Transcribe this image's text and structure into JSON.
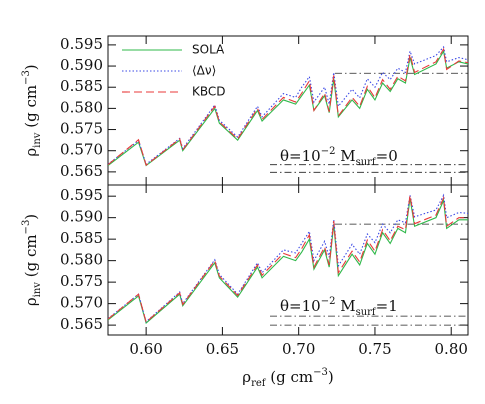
{
  "chart_data": [
    {
      "type": "line",
      "x_label": {
        "main": "ρ",
        "sub": "ref",
        "rest": " (g cm",
        "sup": "−3",
        "end": ")"
      },
      "y_label": {
        "main": "ρ",
        "sub": "inv",
        "rest": " (g cm",
        "sup": "−3",
        "end": ")"
      },
      "annotation": {
        "main": "θ=10",
        "sup": "−2",
        "rest": "   M",
        "sub": "surf",
        "end": "=0"
      },
      "x": [
        0.575,
        0.595,
        0.6,
        0.622,
        0.624,
        0.645,
        0.648,
        0.66,
        0.673,
        0.676,
        0.69,
        0.698,
        0.702,
        0.707,
        0.71,
        0.717,
        0.72,
        0.723,
        0.726,
        0.735,
        0.74,
        0.745,
        0.75,
        0.755,
        0.76,
        0.765,
        0.77,
        0.773,
        0.776,
        0.79,
        0.795,
        0.797,
        0.805,
        0.811
      ],
      "series": [
        {
          "name": "SOLA",
          "color": "#2fb84a",
          "style": "solid",
          "values": [
            0.5665,
            0.572,
            0.5665,
            0.5725,
            0.57,
            0.58,
            0.5765,
            0.5725,
            0.5795,
            0.577,
            0.582,
            0.581,
            0.583,
            0.5855,
            0.5795,
            0.583,
            0.579,
            0.587,
            0.578,
            0.582,
            0.58,
            0.5845,
            0.582,
            0.586,
            0.584,
            0.587,
            0.586,
            0.592,
            0.588,
            0.5905,
            0.5935,
            0.5895,
            0.591,
            0.5905
          ]
        },
        {
          "name": "⟨Δν⟩",
          "color": "#3a48e6",
          "style": "dotted",
          "values": [
            0.5668,
            0.5724,
            0.5668,
            0.5729,
            0.5705,
            0.5808,
            0.5772,
            0.5732,
            0.5805,
            0.578,
            0.5835,
            0.5826,
            0.585,
            0.5875,
            0.5815,
            0.585,
            0.581,
            0.5885,
            0.5805,
            0.5845,
            0.5825,
            0.587,
            0.585,
            0.5885,
            0.5868,
            0.5895,
            0.5885,
            0.5935,
            0.5905,
            0.5925,
            0.5945,
            0.591,
            0.592,
            0.5915
          ]
        },
        {
          "name": "KBCD",
          "color": "#e83a3a",
          "style": "dashed",
          "values": [
            0.5667,
            0.5726,
            0.5666,
            0.5728,
            0.5702,
            0.5805,
            0.5768,
            0.5728,
            0.58,
            0.5774,
            0.5826,
            0.5815,
            0.5836,
            0.5865,
            0.5795,
            0.5836,
            0.5792,
            0.5878,
            0.5782,
            0.5826,
            0.5805,
            0.5852,
            0.5825,
            0.5868,
            0.5845,
            0.5876,
            0.5865,
            0.5928,
            0.5885,
            0.591,
            0.594,
            0.5892,
            0.5912,
            0.5908
          ]
        }
      ],
      "reference_lines": [
        0.5883,
        0.5667,
        0.5649
      ],
      "xlim": [
        0.575,
        0.811
      ],
      "ylim": [
        0.5619,
        0.5971
      ],
      "xticks": [
        0.6,
        0.65,
        0.7,
        0.75,
        0.8
      ],
      "yticks": [
        0.565,
        {
          "value": 0.57,
          "label": "0.570"
        },
        0.575,
        {
          "value": 0.58,
          "label": "0.580"
        },
        0.585,
        {
          "value": 0.59,
          "label": "0.590"
        },
        0.595
      ],
      "legend": "upper left"
    },
    {
      "type": "line",
      "y_label": {
        "main": "ρ",
        "sub": "inv",
        "rest": " (g cm",
        "sup": "−3",
        "end": ")"
      },
      "annotation": {
        "main": "θ=10",
        "sup": "−2",
        "rest": "   M",
        "sub": "surf",
        "end": "=1"
      },
      "x": [
        0.575,
        0.595,
        0.6,
        0.622,
        0.624,
        0.645,
        0.648,
        0.66,
        0.673,
        0.676,
        0.69,
        0.698,
        0.702,
        0.707,
        0.71,
        0.717,
        0.72,
        0.723,
        0.726,
        0.735,
        0.74,
        0.745,
        0.75,
        0.755,
        0.76,
        0.765,
        0.77,
        0.773,
        0.776,
        0.79,
        0.795,
        0.797,
        0.805,
        0.811
      ],
      "series": [
        {
          "color": "#2fb84a",
          "style": "solid",
          "values": [
            0.5662,
            0.5718,
            0.5655,
            0.5722,
            0.5695,
            0.5795,
            0.576,
            0.5715,
            0.5785,
            0.576,
            0.581,
            0.58,
            0.582,
            0.585,
            0.578,
            0.5825,
            0.5785,
            0.5885,
            0.5765,
            0.5815,
            0.579,
            0.584,
            0.5815,
            0.5865,
            0.584,
            0.5875,
            0.5865,
            0.5945,
            0.588,
            0.59,
            0.594,
            0.5875,
            0.5895,
            0.5895
          ]
        },
        {
          "color": "#3a48e6",
          "style": "dotted",
          "values": [
            0.5665,
            0.5722,
            0.5658,
            0.5727,
            0.57,
            0.5802,
            0.5768,
            0.5722,
            0.5795,
            0.5772,
            0.5825,
            0.5818,
            0.584,
            0.5868,
            0.58,
            0.5845,
            0.5808,
            0.5895,
            0.5788,
            0.5838,
            0.5815,
            0.5862,
            0.5842,
            0.5885,
            0.5865,
            0.5895,
            0.5888,
            0.5952,
            0.5902,
            0.5918,
            0.5952,
            0.59,
            0.5912,
            0.591
          ]
        },
        {
          "color": "#e83a3a",
          "style": "dashed",
          "values": [
            0.5664,
            0.5722,
            0.5657,
            0.5725,
            0.5698,
            0.58,
            0.5764,
            0.5719,
            0.579,
            0.5766,
            0.5817,
            0.5807,
            0.5828,
            0.586,
            0.5785,
            0.5832,
            0.579,
            0.5892,
            0.5772,
            0.5822,
            0.5797,
            0.5848,
            0.5822,
            0.5872,
            0.5846,
            0.588,
            0.5872,
            0.5952,
            0.5886,
            0.5906,
            0.5946,
            0.588,
            0.59,
            0.59
          ]
        }
      ],
      "reference_lines": [
        0.5885,
        0.5671,
        0.565
      ],
      "xlim": [
        0.575,
        0.811
      ],
      "ylim": [
        0.5627,
        0.5976
      ],
      "xticks": [
        {
          "value": 0.6,
          "label": "0.60"
        },
        0.65,
        {
          "value": 0.7,
          "label": "0.70"
        },
        0.75,
        {
          "value": 0.8,
          "label": "0.80"
        }
      ],
      "yticks": [
        0.565,
        {
          "value": 0.57,
          "label": "0.570"
        },
        0.575,
        {
          "value": 0.58,
          "label": "0.580"
        },
        0.585,
        {
          "value": 0.59,
          "label": "0.590"
        },
        0.595
      ]
    }
  ]
}
